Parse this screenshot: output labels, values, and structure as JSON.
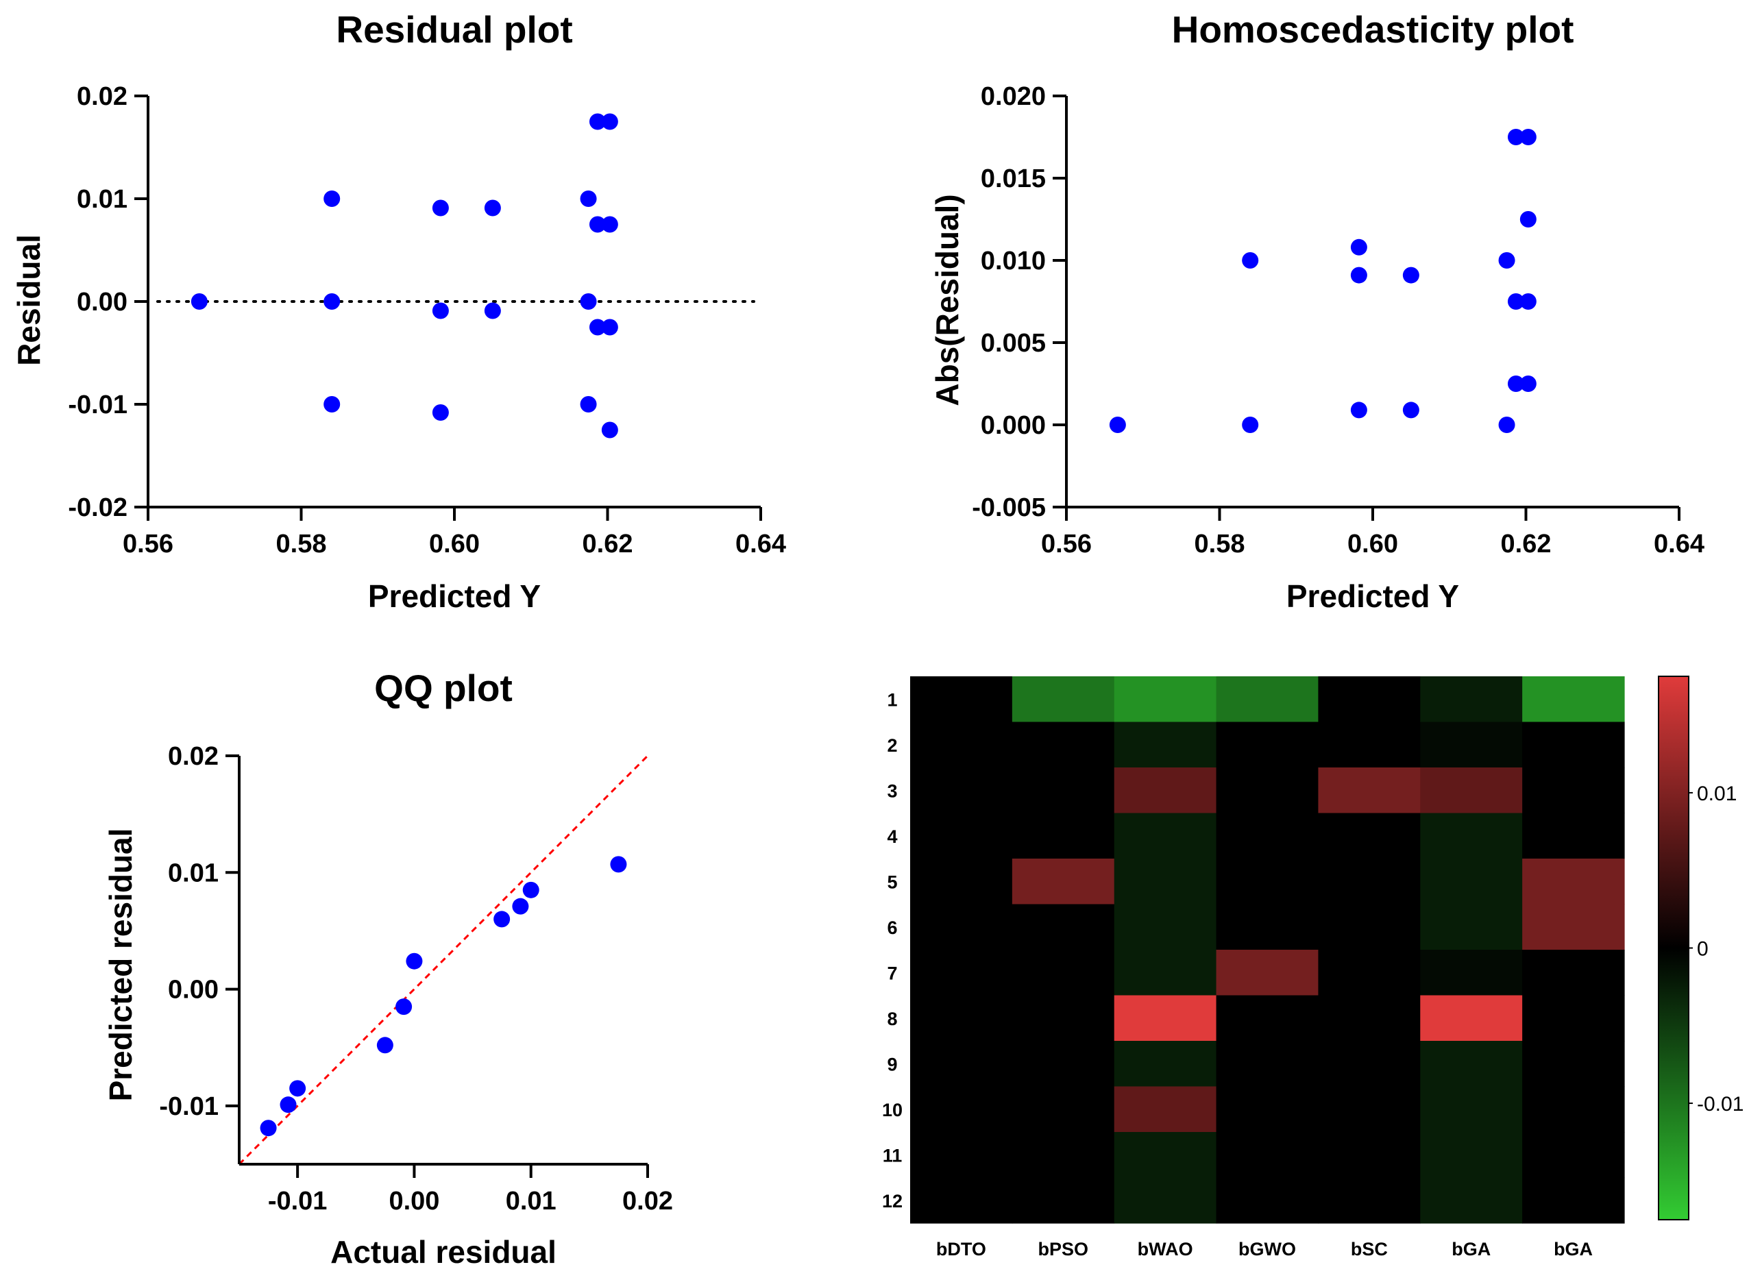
{
  "chart_data": [
    {
      "type": "scatter",
      "title": "Residual plot",
      "xlabel": "Predicted Y",
      "ylabel": "Residual",
      "xlim": [
        0.56,
        0.64
      ],
      "ylim": [
        -0.02,
        0.02
      ],
      "xticks": [
        "0.56",
        "0.58",
        "0.60",
        "0.62",
        "0.64"
      ],
      "yticks": [
        "-0.02",
        "-0.01",
        "0.00",
        "0.01",
        "0.02"
      ],
      "reference_line": {
        "y": 0,
        "style": "dotted",
        "color": "#000000"
      },
      "marker_color": "#0000ff",
      "points": [
        [
          0.5667,
          0.0
        ],
        [
          0.584,
          0.01
        ],
        [
          0.584,
          0.0
        ],
        [
          0.584,
          -0.01
        ],
        [
          0.5982,
          0.0091
        ],
        [
          0.5982,
          -0.0009
        ],
        [
          0.5982,
          -0.0108
        ],
        [
          0.605,
          0.0091
        ],
        [
          0.605,
          -0.0009
        ],
        [
          0.6175,
          0.01
        ],
        [
          0.6175,
          0.0
        ],
        [
          0.6175,
          -0.01
        ],
        [
          0.6187,
          0.0175
        ],
        [
          0.6187,
          0.0075
        ],
        [
          0.6187,
          -0.0025
        ],
        [
          0.6203,
          0.0175
        ],
        [
          0.6203,
          0.0075
        ],
        [
          0.6203,
          -0.0025
        ],
        [
          0.6203,
          -0.0125
        ]
      ]
    },
    {
      "type": "scatter",
      "title": "Homoscedasticity plot",
      "xlabel": "Predicted Y",
      "ylabel": "Abs(Residual)",
      "xlim": [
        0.56,
        0.64
      ],
      "ylim": [
        -0.005,
        0.02
      ],
      "xticks": [
        "0.56",
        "0.58",
        "0.60",
        "0.62",
        "0.64"
      ],
      "yticks": [
        "-0.005",
        "0.000",
        "0.005",
        "0.010",
        "0.015",
        "0.020"
      ],
      "marker_color": "#0000ff",
      "points": [
        [
          0.5667,
          0.0
        ],
        [
          0.584,
          0.01
        ],
        [
          0.584,
          0.0
        ],
        [
          0.5982,
          0.0108
        ],
        [
          0.5982,
          0.0091
        ],
        [
          0.5982,
          0.0009
        ],
        [
          0.605,
          0.0091
        ],
        [
          0.605,
          0.0009
        ],
        [
          0.6175,
          0.01
        ],
        [
          0.6175,
          0.0
        ],
        [
          0.6187,
          0.0175
        ],
        [
          0.6187,
          0.0075
        ],
        [
          0.6187,
          0.0025
        ],
        [
          0.6203,
          0.0175
        ],
        [
          0.6203,
          0.0125
        ],
        [
          0.6203,
          0.0075
        ],
        [
          0.6203,
          0.0025
        ]
      ]
    },
    {
      "type": "scatter",
      "title": "QQ plot",
      "xlabel": "Actual residual",
      "ylabel": "Predicted residual",
      "xlim": [
        -0.015,
        0.02
      ],
      "ylim": [
        -0.015,
        0.02
      ],
      "xticks": [
        "-0.01",
        "0.00",
        "0.01",
        "0.02"
      ],
      "yticks": [
        "-0.01",
        "0.00",
        "0.01",
        "0.02"
      ],
      "reference_line": {
        "from": [
          -0.015,
          -0.015
        ],
        "to": [
          0.02,
          0.02
        ],
        "style": "dashed",
        "color": "#ff0000"
      },
      "marker_color": "#0000ff",
      "points": [
        [
          -0.0125,
          -0.0119
        ],
        [
          -0.0108,
          -0.0099
        ],
        [
          -0.01,
          -0.0085
        ],
        [
          -0.0025,
          -0.0048
        ],
        [
          -0.0009,
          -0.0015
        ],
        [
          0.0,
          0.0024
        ],
        [
          0.0075,
          0.006
        ],
        [
          0.0091,
          0.0071
        ],
        [
          0.01,
          0.0085
        ],
        [
          0.0175,
          0.0107
        ]
      ]
    },
    {
      "type": "heatmap",
      "columns": [
        "bDTO",
        "bPSO",
        "bWAO",
        "bGWO",
        "bSC",
        "bGA",
        "bGA"
      ],
      "rows": [
        "1",
        "2",
        "3",
        "4",
        "5",
        "6",
        "7",
        "8",
        "9",
        "10",
        "11",
        "12"
      ],
      "values": [
        [
          0,
          -0.01,
          -0.0125,
          -0.01,
          0,
          -0.0025,
          -0.0125
        ],
        [
          0,
          0,
          -0.0025,
          0,
          0,
          -0.0009,
          0
        ],
        [
          0,
          0,
          0.0075,
          0,
          0.0091,
          0.0075,
          0
        ],
        [
          0,
          0,
          -0.0025,
          0,
          0,
          -0.0025,
          0
        ],
        [
          0,
          0.0091,
          -0.0025,
          0,
          0,
          -0.0025,
          0.0091
        ],
        [
          0,
          0,
          -0.0025,
          0,
          0,
          -0.0025,
          0.0091
        ],
        [
          0,
          0,
          -0.0025,
          0.0091,
          0,
          -0.0009,
          0
        ],
        [
          0,
          0,
          0.0175,
          0,
          0,
          0.0175,
          0
        ],
        [
          0,
          0,
          -0.0025,
          0,
          0,
          -0.0025,
          0
        ],
        [
          0,
          0,
          0.0075,
          0,
          0,
          -0.0025,
          0
        ],
        [
          0,
          0,
          -0.0025,
          0,
          0,
          -0.0025,
          0
        ],
        [
          0,
          0,
          -0.0025,
          0,
          0,
          -0.0025,
          0
        ]
      ],
      "colorbar": {
        "range": [
          -0.0175,
          0.0175
        ],
        "ticks": [
          0.01,
          0,
          -0.01
        ],
        "tick_labels": [
          "0.01",
          "0",
          "-0.01"
        ],
        "colors": {
          "low": "#33cc33",
          "mid": "#000000",
          "high": "#e03b3b"
        }
      }
    }
  ]
}
